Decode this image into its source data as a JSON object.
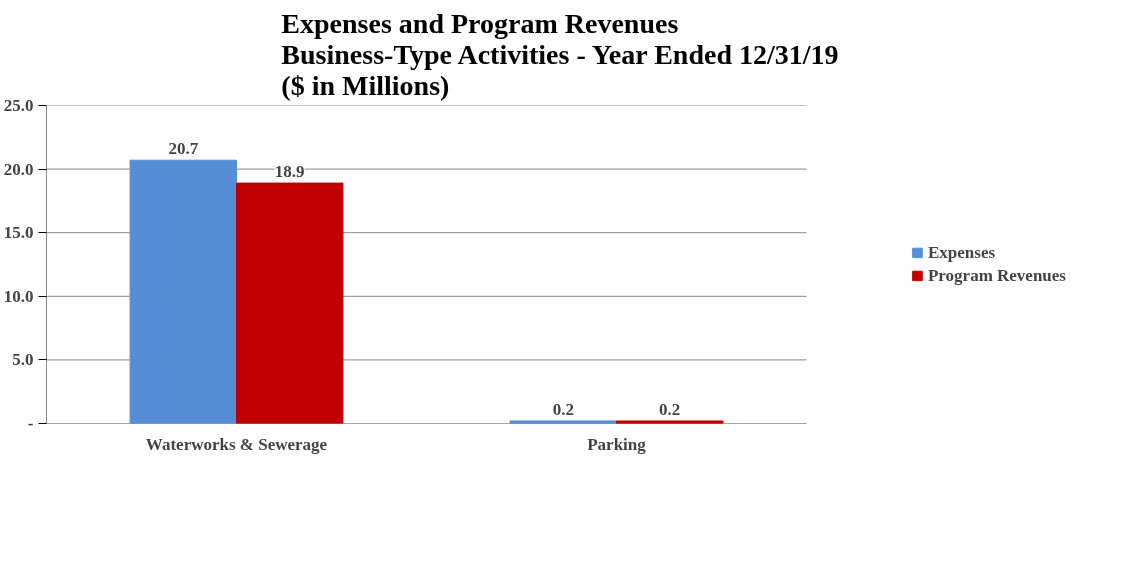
{
  "chart_data": {
    "type": "bar",
    "title": "Expenses and Program Revenues\nBusiness-Type Activities - Year Ended 12/31/19\n($ in Millions)",
    "categories": [
      "Waterworks & Sewerage",
      "Parking"
    ],
    "series": [
      {
        "name": "Expenses",
        "color": "#558ed5",
        "values": [
          20.7,
          0.2
        ]
      },
      {
        "name": "Program Revenues",
        "color": "#c00000",
        "values": [
          18.9,
          0.2
        ]
      }
    ],
    "ylim": [
      0,
      25
    ],
    "yticks": [
      {
        "value": 0,
        "label": "-"
      },
      {
        "value": 5,
        "label": "5.0"
      },
      {
        "value": 10,
        "label": "10.0"
      },
      {
        "value": 15,
        "label": "15.0"
      },
      {
        "value": 20,
        "label": "20.0"
      },
      {
        "value": 25,
        "label": "25.0"
      }
    ],
    "grid": "y",
    "legend": "right",
    "data_labels": true
  }
}
